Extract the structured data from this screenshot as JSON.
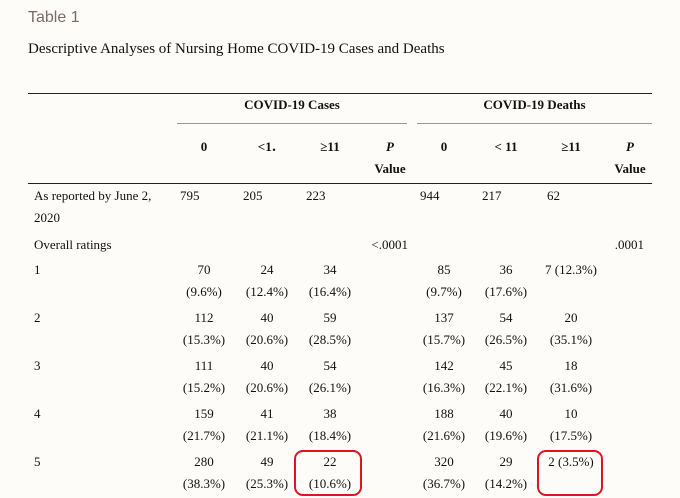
{
  "table_label": "Table 1",
  "title": "Descriptive Analyses of Nursing Home COVID-19 Cases and Deaths",
  "groups": {
    "cases": "COVID-19 Cases",
    "deaths": "COVID-19 Deaths"
  },
  "columns": {
    "cases": [
      "0",
      "<1․",
      "≥11"
    ],
    "deaths": [
      "0",
      "< 11",
      "≥11"
    ],
    "p_top": "P",
    "p_bottom": "Value"
  },
  "rows": [
    {
      "label": "As reported by June 2, 2020",
      "cases": [
        [
          "795",
          ""
        ],
        [
          "205",
          ""
        ],
        [
          "223",
          ""
        ]
      ],
      "p_cases": "",
      "deaths": [
        [
          "944",
          ""
        ],
        [
          "217",
          ""
        ],
        [
          "62",
          ""
        ]
      ],
      "p_deaths": ""
    },
    {
      "label": "Overall ratings",
      "cases": [
        [
          "",
          ""
        ],
        [
          "",
          ""
        ],
        [
          "",
          ""
        ]
      ],
      "p_cases": "<.0001",
      "deaths": [
        [
          "",
          ""
        ],
        [
          "",
          ""
        ],
        [
          "",
          ""
        ]
      ],
      "p_deaths": ".0001"
    },
    {
      "label": "1",
      "cases": [
        [
          "70",
          "(9.6%)"
        ],
        [
          "24",
          "(12.4%)"
        ],
        [
          "34",
          "(16.4%)"
        ]
      ],
      "p_cases": "",
      "deaths": [
        [
          "85",
          "(9.7%)"
        ],
        [
          "36",
          "(17.6%)"
        ],
        [
          "7 (12.3%)",
          ""
        ]
      ],
      "p_deaths": ""
    },
    {
      "label": "2",
      "cases": [
        [
          "112",
          "(15.3%)"
        ],
        [
          "40",
          "(20.6%)"
        ],
        [
          "59",
          "(28.5%)"
        ]
      ],
      "p_cases": "",
      "deaths": [
        [
          "137",
          "(15.7%)"
        ],
        [
          "54",
          "(26.5%)"
        ],
        [
          "20",
          "(35.1%)"
        ]
      ],
      "p_deaths": ""
    },
    {
      "label": "3",
      "cases": [
        [
          "111",
          "(15.2%)"
        ],
        [
          "40",
          "(20.6%)"
        ],
        [
          "54",
          "(26.1%)"
        ]
      ],
      "p_cases": "",
      "deaths": [
        [
          "142",
          "(16.3%)"
        ],
        [
          "45",
          "(22.1%)"
        ],
        [
          "18",
          "(31.6%)"
        ]
      ],
      "p_deaths": ""
    },
    {
      "label": "4",
      "cases": [
        [
          "159",
          "(21.7%)"
        ],
        [
          "41",
          "(21.1%)"
        ],
        [
          "38",
          "(18.4%)"
        ]
      ],
      "p_cases": "",
      "deaths": [
        [
          "188",
          "(21.6%)"
        ],
        [
          "40",
          "(19.6%)"
        ],
        [
          "10",
          "(17.5%)"
        ]
      ],
      "p_deaths": ""
    },
    {
      "label": "5",
      "cases": [
        [
          "280",
          "(38.3%)"
        ],
        [
          "49",
          "(25.3%)"
        ],
        [
          "22",
          "(10.6%)"
        ]
      ],
      "p_cases": "",
      "deaths": [
        [
          "320",
          "(36.7%)"
        ],
        [
          "29",
          "(14.2%)"
        ],
        [
          "2 (3.5%)",
          ""
        ]
      ],
      "p_deaths": ""
    }
  ],
  "annotation_color": "#e0141e"
}
